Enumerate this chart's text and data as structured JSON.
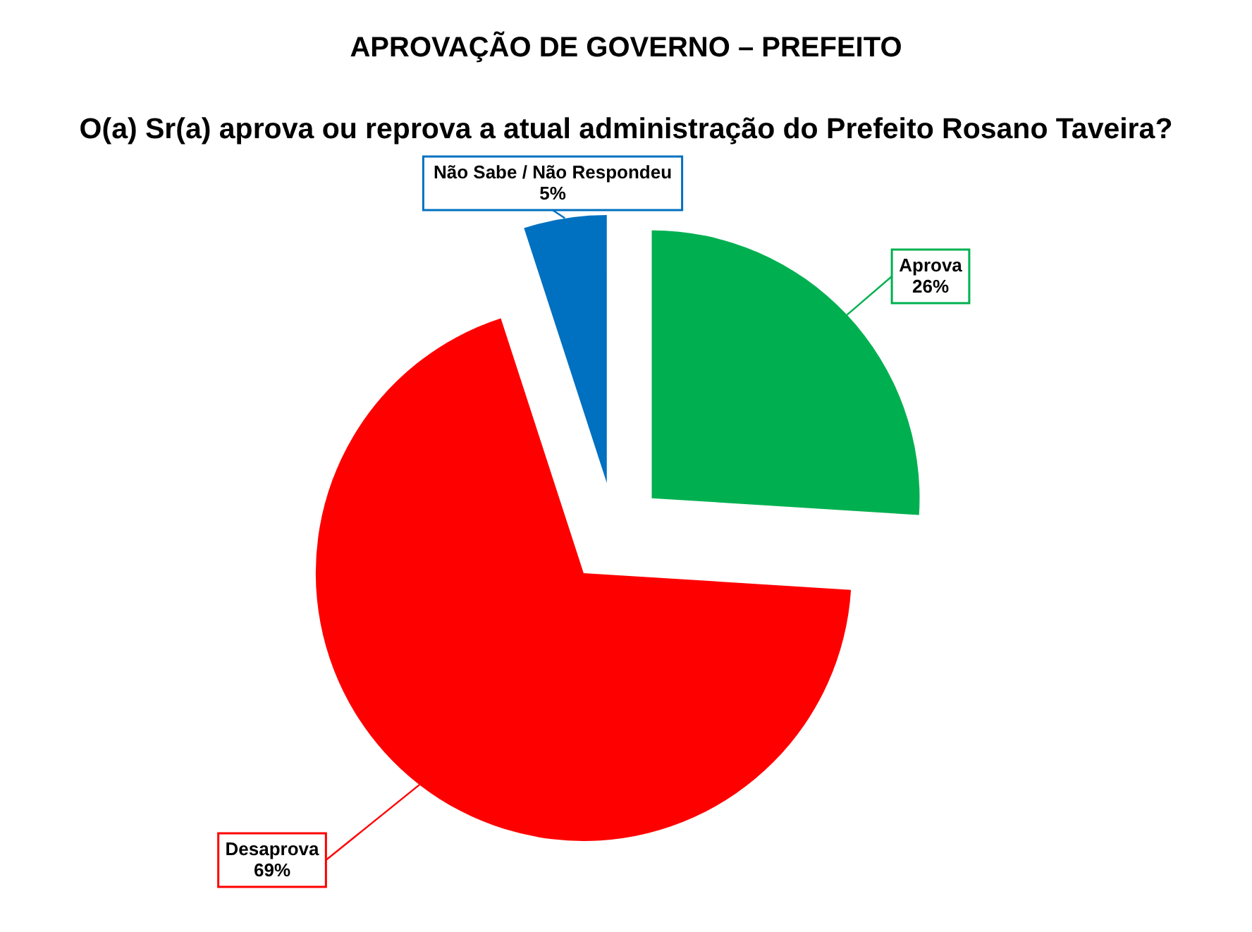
{
  "chart_data": {
    "type": "pie",
    "title": "APROVAÇÃO DE GOVERNO – PREFEITO",
    "subtitle": "O(a) Sr(a) aprova ou reprova a atual administração do Prefeito Rosano Taveira?",
    "categories": [
      "Aprova",
      "Desaprova",
      "Não Sabe / Não Respondeu"
    ],
    "values": [
      26,
      69,
      5
    ],
    "colors": [
      "#00b050",
      "#ff0000",
      "#0070c0"
    ],
    "value_labels": [
      "26%",
      "69%",
      "5%"
    ]
  }
}
